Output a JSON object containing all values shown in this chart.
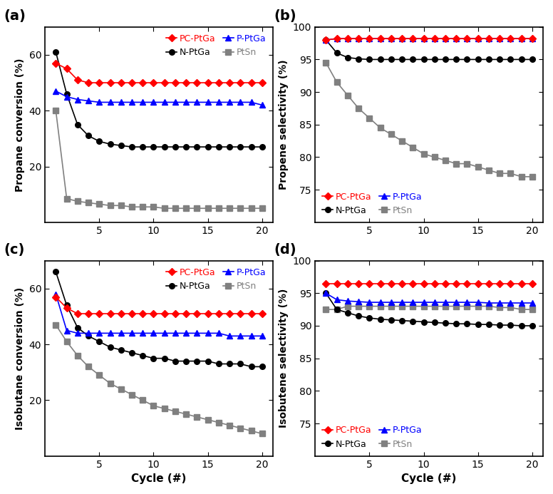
{
  "cycles": [
    1,
    2,
    3,
    4,
    5,
    6,
    7,
    8,
    9,
    10,
    11,
    12,
    13,
    14,
    15,
    16,
    17,
    18,
    19,
    20
  ],
  "a_PC_PtGa": [
    57,
    55,
    51,
    50,
    50,
    50,
    50,
    50,
    50,
    50,
    50,
    50,
    50,
    50,
    50,
    50,
    50,
    50,
    50,
    50
  ],
  "a_N_PtGa": [
    61,
    46,
    35,
    31,
    29,
    28,
    27.5,
    27,
    27,
    27,
    27,
    27,
    27,
    27,
    27,
    27,
    27,
    27,
    27,
    27
  ],
  "a_P_PtGa": [
    47,
    45,
    44,
    43.5,
    43,
    43,
    43,
    43,
    43,
    43,
    43,
    43,
    43,
    43,
    43,
    43,
    43,
    43,
    43,
    42
  ],
  "a_PtSn": [
    40,
    8.5,
    7.5,
    7,
    6.5,
    6,
    6,
    5.5,
    5.5,
    5.5,
    5,
    5,
    5,
    5,
    5,
    5,
    5,
    5,
    5,
    5
  ],
  "b_PC_PtGa": [
    98.0,
    98.2,
    98.2,
    98.2,
    98.2,
    98.2,
    98.2,
    98.2,
    98.2,
    98.2,
    98.2,
    98.2,
    98.2,
    98.2,
    98.2,
    98.2,
    98.2,
    98.2,
    98.2,
    98.2
  ],
  "b_N_PtGa": [
    98.0,
    96.0,
    95.3,
    95.1,
    95.0,
    95.0,
    95.0,
    95.0,
    95.0,
    95.0,
    95.0,
    95.0,
    95.0,
    95.0,
    95.0,
    95.0,
    95.0,
    95.0,
    95.0,
    95.0
  ],
  "b_P_PtGa": [
    98.0,
    98.2,
    98.2,
    98.2,
    98.2,
    98.2,
    98.2,
    98.2,
    98.2,
    98.2,
    98.2,
    98.2,
    98.2,
    98.2,
    98.2,
    98.2,
    98.2,
    98.2,
    98.2,
    98.2
  ],
  "b_PtSn": [
    94.5,
    91.5,
    89.5,
    87.5,
    86.0,
    84.5,
    83.5,
    82.5,
    81.5,
    80.5,
    80.0,
    79.5,
    79.0,
    79.0,
    78.5,
    78.0,
    77.5,
    77.5,
    77.0,
    77.0
  ],
  "c_PC_PtGa": [
    57,
    53,
    51,
    51,
    51,
    51,
    51,
    51,
    51,
    51,
    51,
    51,
    51,
    51,
    51,
    51,
    51,
    51,
    51,
    51
  ],
  "c_N_PtGa": [
    66,
    54,
    46,
    43,
    41,
    39,
    38,
    37,
    36,
    35,
    35,
    34,
    34,
    34,
    34,
    33,
    33,
    33,
    32,
    32
  ],
  "c_P_PtGa": [
    58,
    45,
    44,
    44,
    44,
    44,
    44,
    44,
    44,
    44,
    44,
    44,
    44,
    44,
    44,
    44,
    43,
    43,
    43,
    43
  ],
  "c_PtSn": [
    47,
    41,
    36,
    32,
    29,
    26,
    24,
    22,
    20,
    18,
    17,
    16,
    15,
    14,
    13,
    12,
    11,
    10,
    9,
    8
  ],
  "d_PC_PtGa": [
    96.5,
    96.5,
    96.5,
    96.5,
    96.5,
    96.5,
    96.5,
    96.5,
    96.5,
    96.5,
    96.5,
    96.5,
    96.5,
    96.5,
    96.5,
    96.5,
    96.5,
    96.5,
    96.5,
    96.5
  ],
  "d_N_PtGa": [
    95.0,
    92.5,
    92.0,
    91.5,
    91.2,
    91.0,
    90.9,
    90.8,
    90.7,
    90.6,
    90.5,
    90.4,
    90.3,
    90.3,
    90.2,
    90.2,
    90.1,
    90.1,
    90.0,
    90.0
  ],
  "d_P_PtGa": [
    95.0,
    94.0,
    93.8,
    93.7,
    93.6,
    93.6,
    93.6,
    93.6,
    93.6,
    93.6,
    93.6,
    93.6,
    93.6,
    93.6,
    93.6,
    93.5,
    93.5,
    93.5,
    93.5,
    93.5
  ],
  "d_PtSn": [
    92.5,
    92.5,
    93.0,
    93.0,
    93.0,
    93.0,
    93.0,
    93.0,
    93.0,
    93.0,
    93.0,
    93.0,
    93.0,
    93.0,
    93.0,
    93.0,
    92.8,
    92.8,
    92.5,
    92.5
  ],
  "color_PC": "#ff0000",
  "color_N": "#000000",
  "color_P": "#0000ff",
  "color_Sn": "#808080",
  "panel_labels": [
    "(a)",
    "(b)",
    "(c)",
    "(d)"
  ],
  "ylabels": [
    "Propane conversion (%)",
    "Propene selectivity (%)",
    "Isobutane conversion (%)",
    "Isobutene selectivity (%)"
  ],
  "xlabel": "Cycle (#)",
  "a_ylim": [
    0,
    70
  ],
  "b_ylim": [
    70,
    100
  ],
  "c_ylim": [
    0,
    70
  ],
  "d_ylim": [
    70,
    100
  ],
  "a_yticks": [
    20,
    40,
    60
  ],
  "b_yticks": [
    75,
    80,
    85,
    90,
    95,
    100
  ],
  "c_yticks": [
    20,
    40,
    60
  ],
  "d_yticks": [
    75,
    80,
    85,
    90,
    95,
    100
  ],
  "xlim": [
    0,
    21
  ],
  "xticks": [
    5,
    10,
    15,
    20
  ]
}
